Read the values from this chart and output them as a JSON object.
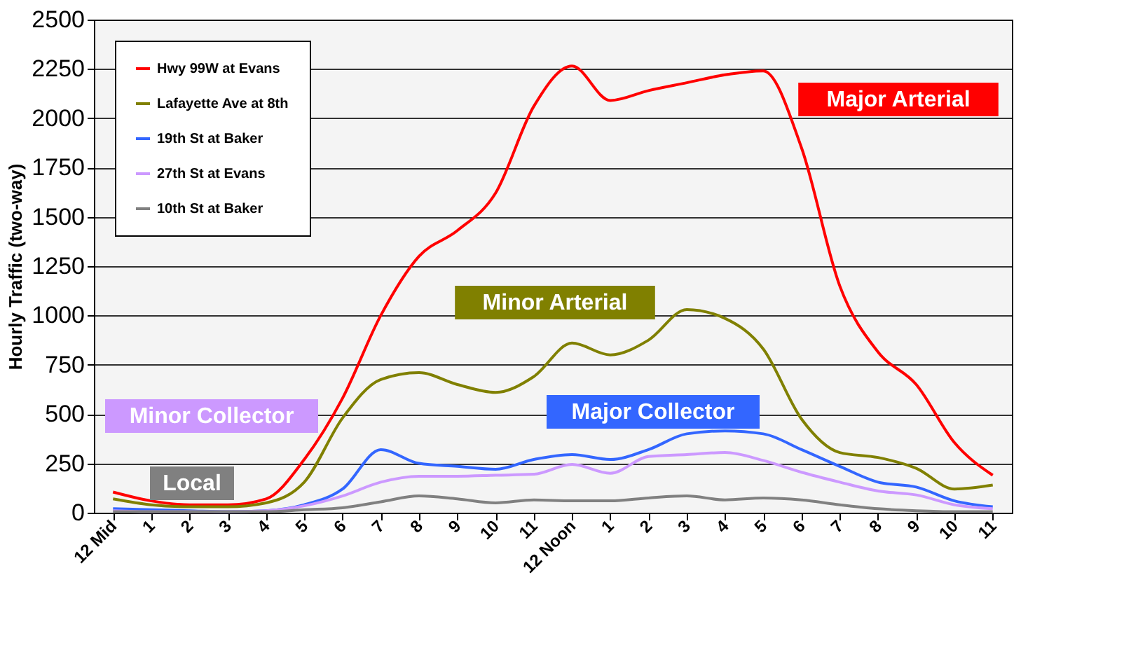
{
  "chart_data": {
    "type": "line",
    "ylabel": "Hourly Traffic (two-way)",
    "categories": [
      "12 Mid",
      "1",
      "2",
      "3",
      "4",
      "5",
      "6",
      "7",
      "8",
      "9",
      "10",
      "11",
      "12 Noon",
      "1",
      "2",
      "3",
      "4",
      "5",
      "6",
      "7",
      "8",
      "9",
      "10",
      "11"
    ],
    "ylim": [
      0,
      2500
    ],
    "yticks": [
      0,
      250,
      500,
      750,
      1000,
      1250,
      1500,
      1750,
      2000,
      2250,
      2500
    ],
    "grid": "y",
    "legend": "top left",
    "marker": "none",
    "line_style": "solid",
    "series": [
      {
        "name": "Hwy 99W at Evans",
        "color": "#ff0000",
        "values": [
          105,
          60,
          40,
          40,
          70,
          270,
          580,
          1000,
          1300,
          1430,
          1620,
          2060,
          2265,
          2090,
          2140,
          2180,
          2220,
          2240,
          1850,
          1150,
          815,
          650,
          355,
          190
        ]
      },
      {
        "name": "Lafayette Ave at 8th",
        "color": "#808000",
        "values": [
          70,
          40,
          30,
          30,
          50,
          155,
          480,
          675,
          710,
          650,
          610,
          690,
          860,
          800,
          875,
          1030,
          985,
          830,
          475,
          305,
          280,
          225,
          120,
          140
        ]
      },
      {
        "name": "19th St at Baker",
        "color": "#3366ff",
        "values": [
          20,
          15,
          10,
          5,
          10,
          40,
          120,
          320,
          250,
          235,
          220,
          270,
          295,
          270,
          320,
          400,
          415,
          400,
          320,
          235,
          155,
          130,
          60,
          30
        ]
      },
      {
        "name": "27th St at Evans",
        "color": "#cc99ff",
        "values": [
          10,
          5,
          5,
          5,
          10,
          35,
          85,
          155,
          185,
          185,
          190,
          195,
          245,
          200,
          285,
          295,
          305,
          265,
          205,
          155,
          110,
          90,
          40,
          20
        ]
      },
      {
        "name": "10th St at Baker",
        "color": "#808080",
        "values": [
          5,
          5,
          5,
          5,
          5,
          15,
          25,
          55,
          85,
          70,
          50,
          65,
          60,
          60,
          75,
          85,
          65,
          75,
          65,
          40,
          20,
          10,
          5,
          5
        ]
      }
    ],
    "annotations": [
      "Major Arterial",
      "Minor Arterial",
      "Major Collector",
      "Minor Collector",
      "Local"
    ]
  }
}
